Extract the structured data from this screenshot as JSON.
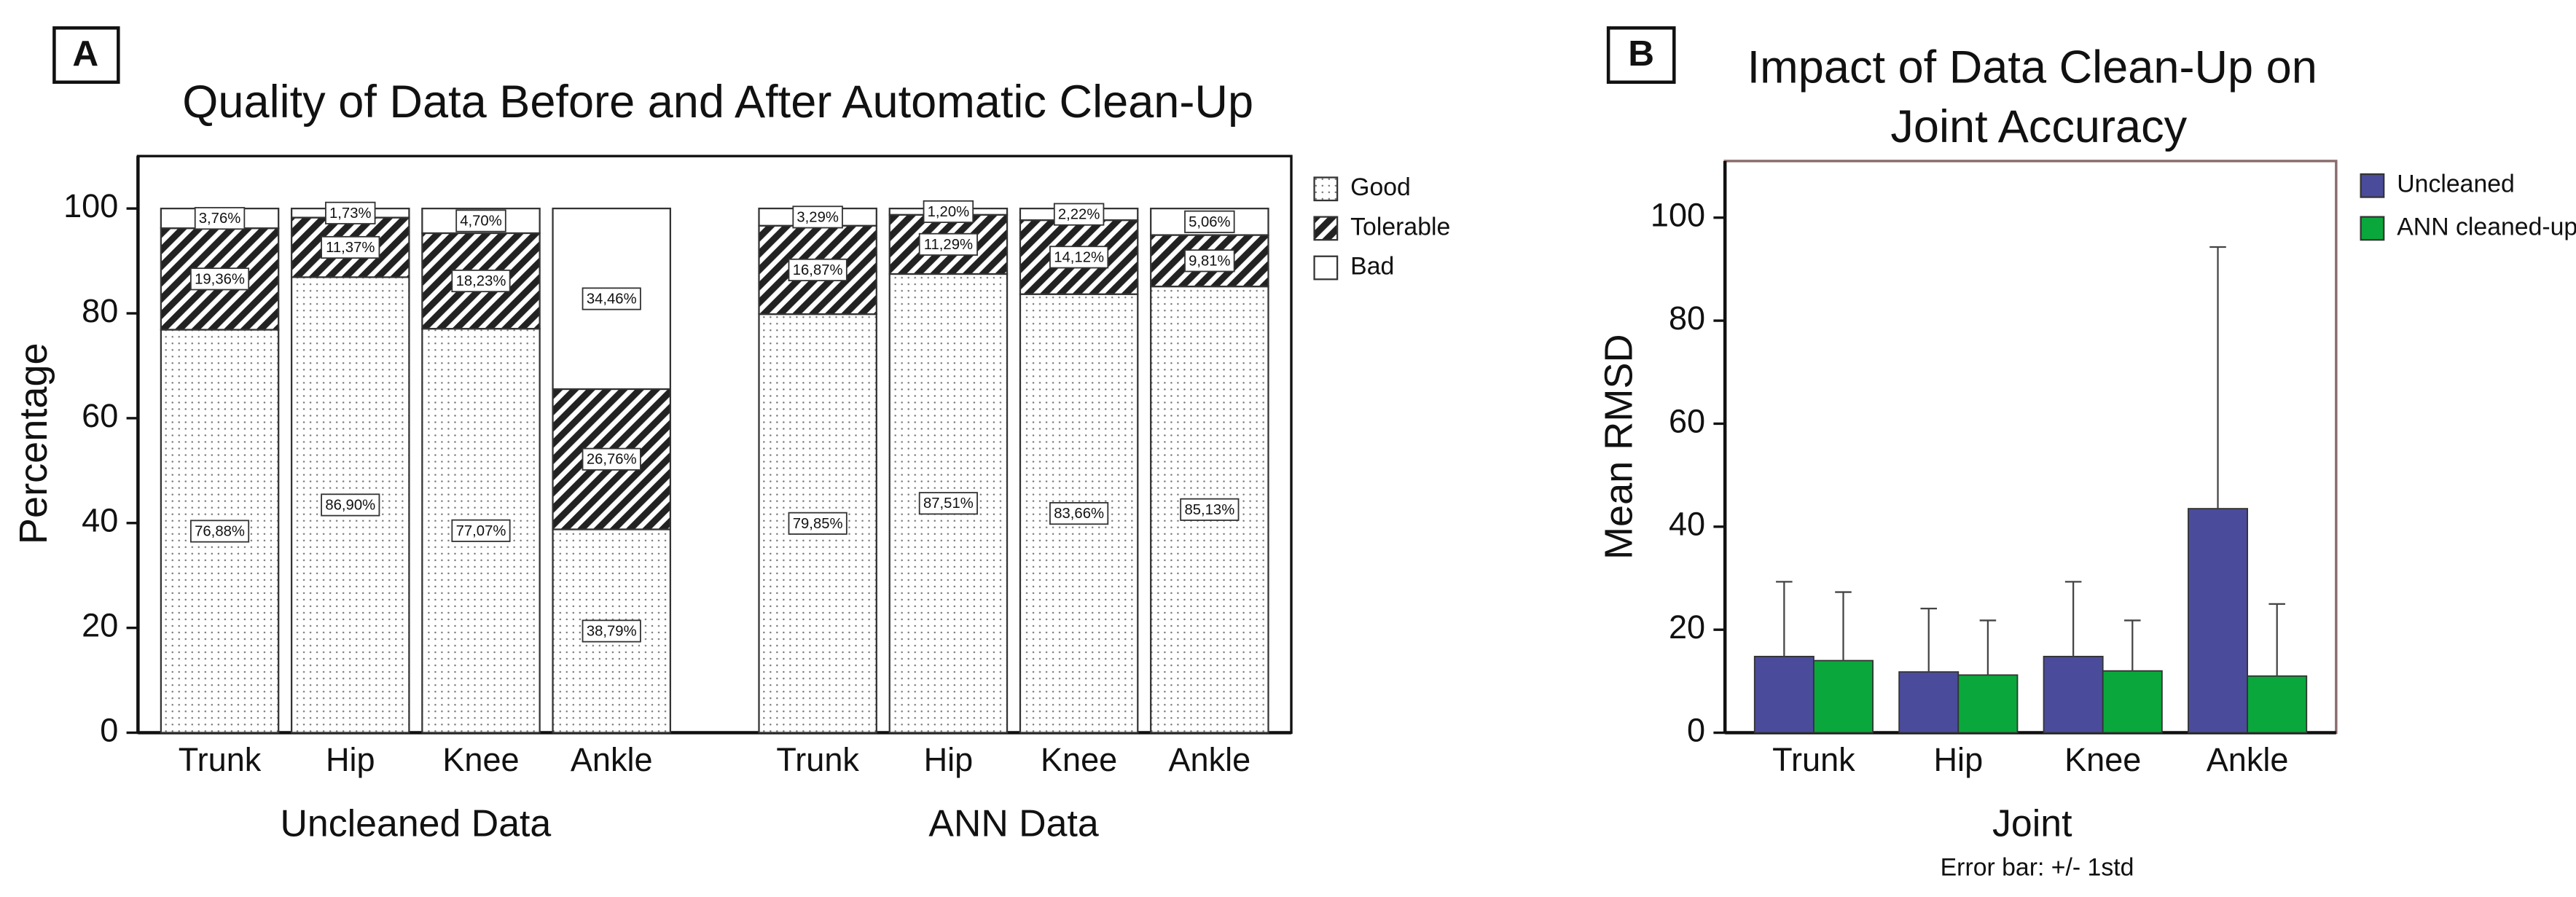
{
  "chart_data": [
    {
      "type": "bar",
      "stacked": true,
      "panel": "A",
      "title": "Quality of Data Before and After Automatic Clean-Up",
      "y_label": "Percentage",
      "categories": [
        "Trunk",
        "Hip",
        "Knee",
        "Ankle",
        "Trunk",
        "Hip",
        "Knee",
        "Ankle"
      ],
      "groups": [
        "Uncleaned Data",
        "ANN Data"
      ],
      "ylim": [
        0,
        110
      ],
      "yticks": [
        0,
        20,
        40,
        60,
        80,
        100
      ],
      "legend": "outside-right",
      "series": [
        {
          "name": "Good",
          "color": "#ffffff",
          "pattern": "dots",
          "values": [
            76.88,
            86.9,
            77.07,
            38.79,
            79.85,
            87.51,
            83.66,
            85.13
          ],
          "value_labels": [
            "76,88%",
            "86,90%",
            "77,07%",
            "38,79%",
            "79,85%",
            "87,51%",
            "83,66%",
            "85,13%"
          ]
        },
        {
          "name": "Tolerable",
          "color": "#ffffff",
          "pattern": "hatch",
          "values": [
            19.36,
            11.37,
            18.23,
            26.76,
            16.87,
            11.29,
            14.12,
            9.81
          ],
          "value_labels": [
            "19,36%",
            "11,37%",
            "18,23%",
            "26,76%",
            "16,87%",
            "11,29%",
            "14,12%",
            "9,81%"
          ]
        },
        {
          "name": "Bad",
          "color": "#ffffff",
          "pattern": "none",
          "values": [
            3.76,
            1.73,
            4.7,
            34.46,
            3.29,
            1.2,
            2.22,
            5.06
          ],
          "value_labels": [
            "3,76%",
            "1,73%",
            "4,70%",
            "34,46%",
            "3,29%",
            "1,20%",
            "2,22%",
            "5,06%"
          ]
        }
      ]
    },
    {
      "type": "bar",
      "stacked": false,
      "panel": "B",
      "title": [
        "Impact of Data Clean-Up on",
        "Joint Accuracy"
      ],
      "x_label": "Joint",
      "note": "Error bar: +/- 1std",
      "y_label": "Mean RMSD",
      "categories": [
        "Trunk",
        "Hip",
        "Knee",
        "Ankle"
      ],
      "ylim": [
        0,
        111
      ],
      "yticks": [
        0,
        20,
        40,
        60,
        80,
        100
      ],
      "legend": "outside-right",
      "series": [
        {
          "name": "Uncleaned",
          "color": "#4b4b9b",
          "pattern": "none",
          "values": [
            14.8,
            11.8,
            14.8,
            43.5
          ],
          "errors": [
            14.5,
            12.3,
            14.5,
            50.8
          ]
        },
        {
          "name": "ANN cleaned-up",
          "color": "#0aa83c",
          "pattern": "none",
          "values": [
            14.0,
            11.2,
            12.0,
            11.0
          ],
          "errors": [
            13.3,
            10.6,
            9.8,
            14.0
          ]
        }
      ]
    }
  ]
}
